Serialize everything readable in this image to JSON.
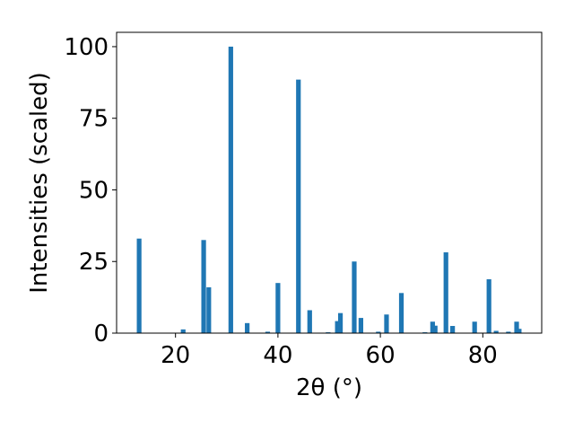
{
  "chart_data": {
    "type": "bar",
    "title": "",
    "xlabel": "2θ (°)",
    "ylabel": "Intensities (scaled)",
    "xlim": [
      8.5,
      91.5
    ],
    "ylim": [
      0,
      105
    ],
    "xticks": [
      20,
      40,
      60,
      80
    ],
    "yticks": [
      0,
      25,
      50,
      75,
      100
    ],
    "bar_color": "#1f77b4",
    "grid": false,
    "legend": "none",
    "series": [
      {
        "x": [
          12.9,
          21.5,
          25.5,
          26.5,
          30.8,
          34.0,
          38.0,
          40.0,
          44.0,
          46.2,
          49.8,
          51.6,
          52.2,
          54.9,
          56.2,
          59.6,
          61.2,
          64.1,
          68.7,
          70.2,
          70.7,
          72.8,
          74.1,
          78.4,
          81.2,
          82.6,
          85.0,
          86.6,
          87.1
        ],
        "values": [
          33,
          1.3,
          32.5,
          16,
          100,
          3.5,
          0.5,
          17.5,
          88.5,
          8,
          0.3,
          4.2,
          7,
          25,
          5.3,
          0.5,
          6.5,
          14,
          0.3,
          4,
          2.6,
          28.2,
          2.5,
          4,
          18.8,
          0.8,
          0.5,
          4,
          1.5
        ]
      }
    ]
  }
}
